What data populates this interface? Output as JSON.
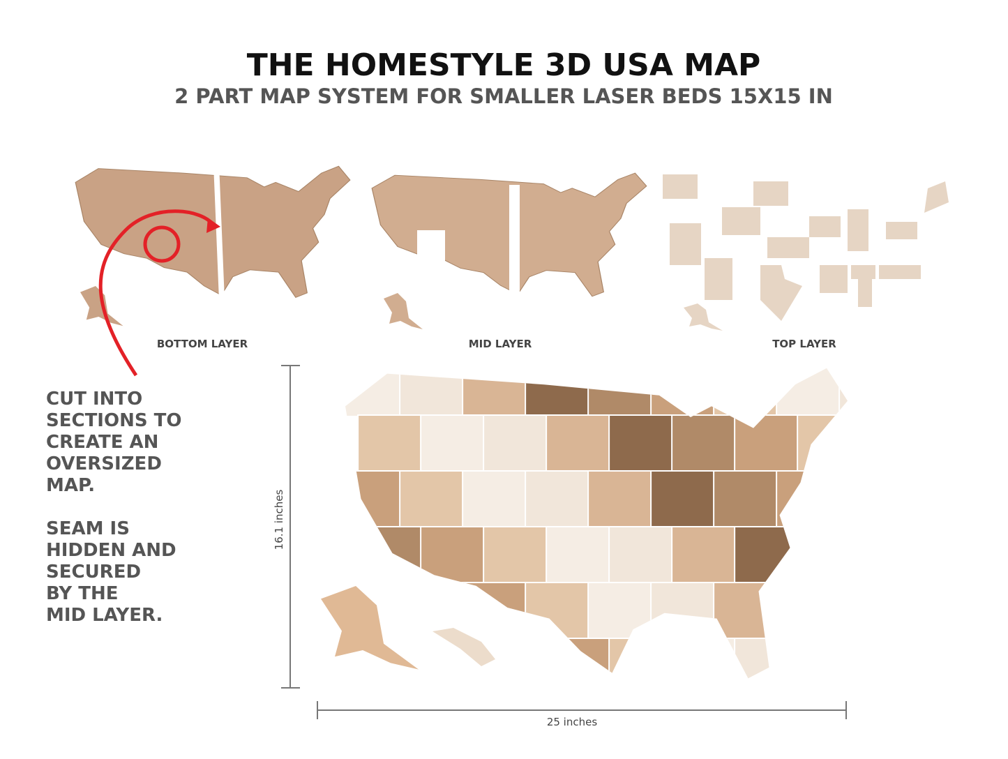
{
  "header": {
    "title": "THE HOMESTYLE 3D USA MAP",
    "subtitle": "2 PART MAP SYSTEM FOR SMALLER LASER BEDS 15X15 IN"
  },
  "layers": [
    {
      "label": "BOTTOM LAYER"
    },
    {
      "label": "MID LAYER"
    },
    {
      "label": "TOP LAYER"
    }
  ],
  "notes": [
    {
      "lines": [
        "CUT INTO",
        "SECTIONS TO",
        "CREATE AN",
        "OVERSIZED",
        "MAP."
      ]
    },
    {
      "lines": [
        "SEAM IS",
        "HIDDEN AND",
        "SECURED",
        "BY THE",
        "MID LAYER."
      ]
    }
  ],
  "dimensions": {
    "height": "16.1 inches",
    "width": "25 inches"
  }
}
